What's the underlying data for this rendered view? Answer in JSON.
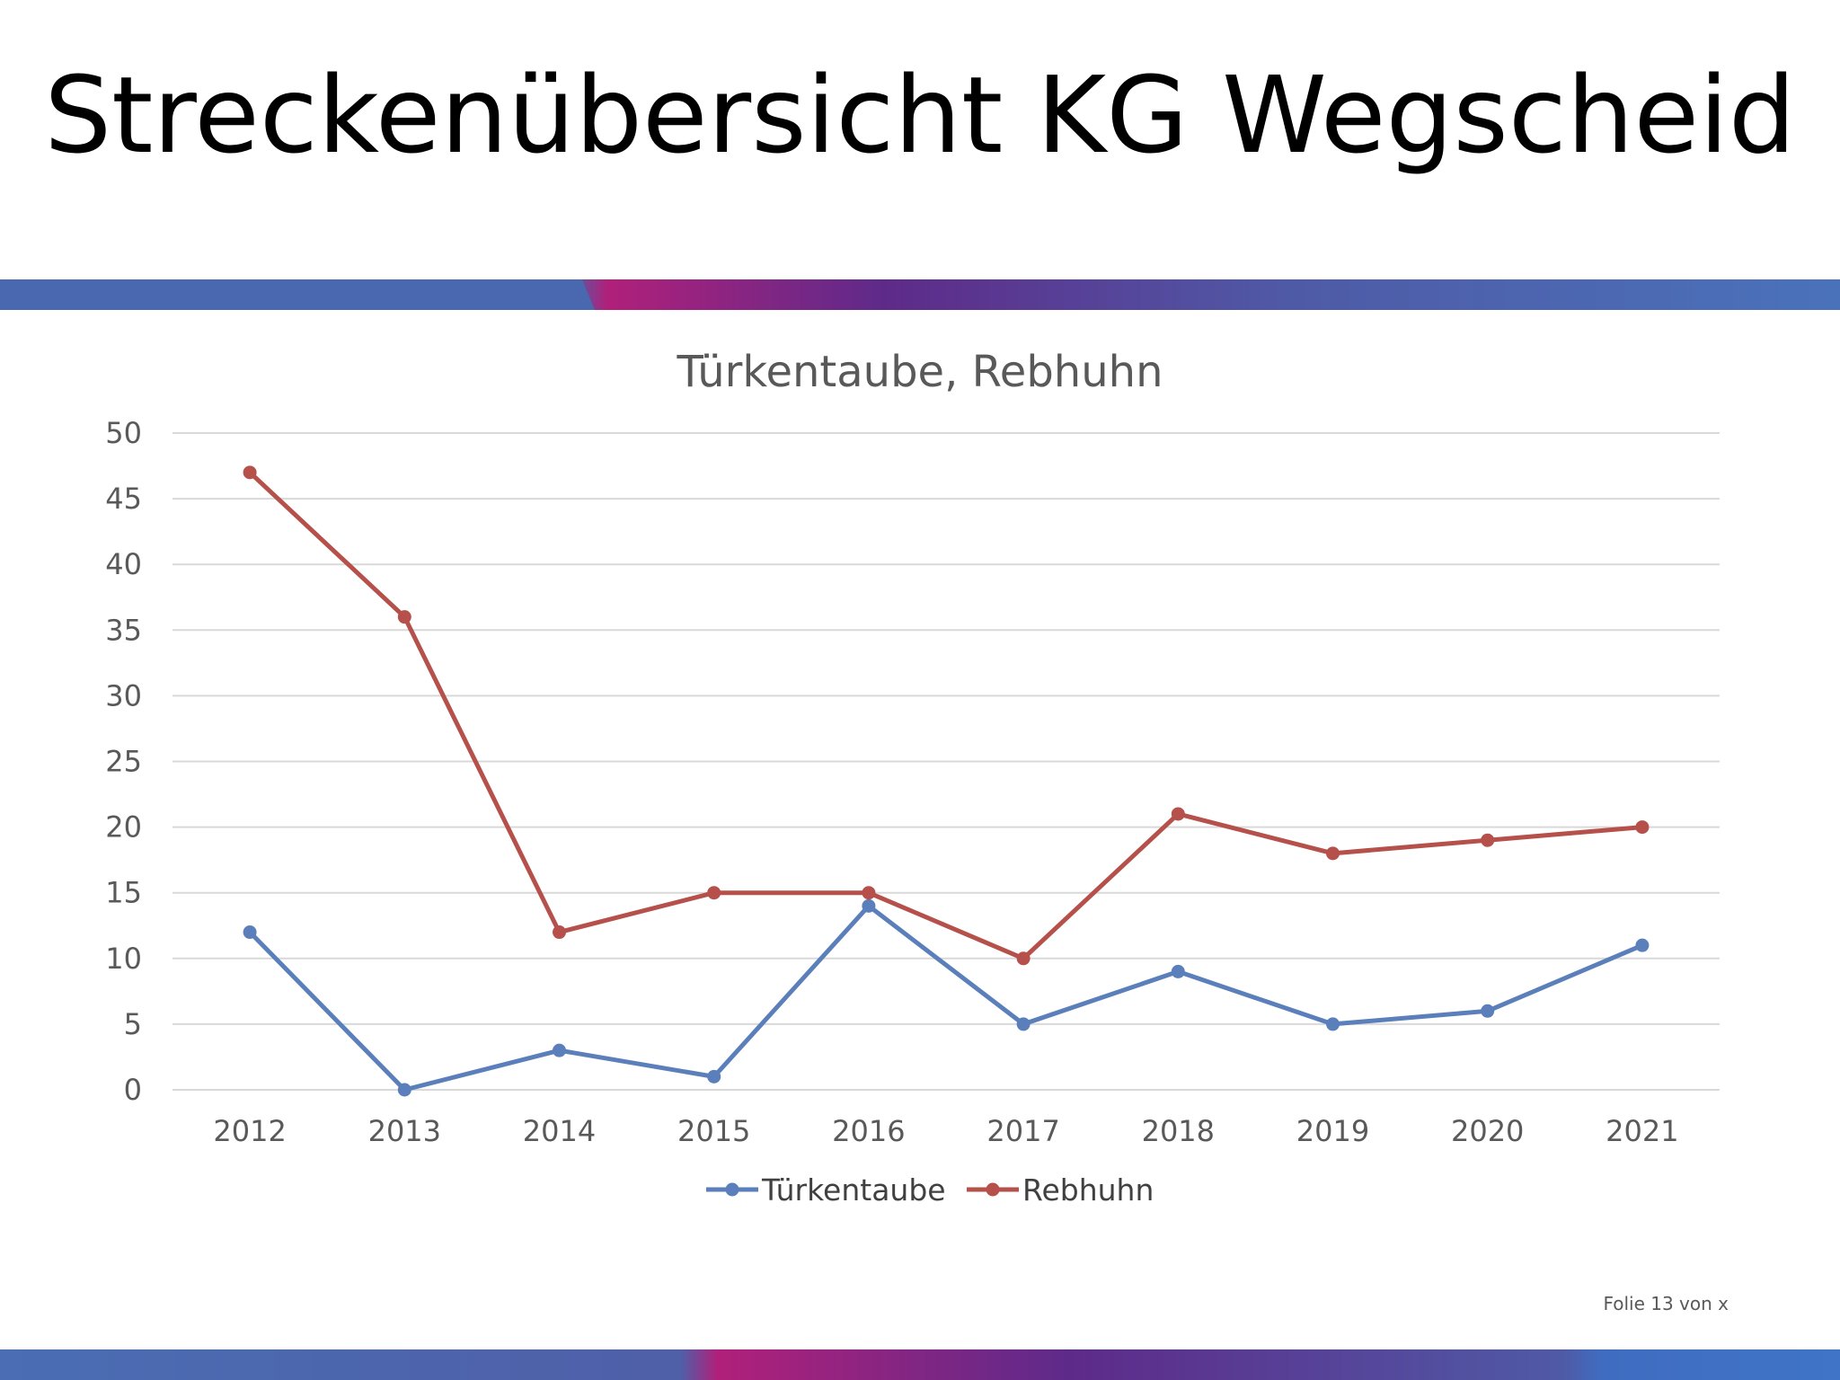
{
  "slide": {
    "title": "Streckenübersicht KG Wegscheid",
    "footer": "Folie 13 von x"
  },
  "colors": {
    "band_blue": "#4a6db3",
    "band_magenta": "#a8207a",
    "band_purple": "#5e2a8a",
    "gridline": "#d9d9d9",
    "text": "#595959"
  },
  "chart_data": {
    "type": "line",
    "title": "Türkentaube, Rebhuhn",
    "xlabel": "",
    "ylabel": "",
    "categories": [
      "2012",
      "2013",
      "2014",
      "2015",
      "2016",
      "2017",
      "2018",
      "2019",
      "2020",
      "2021"
    ],
    "ylim": [
      0,
      50
    ],
    "yticks": [
      0,
      5,
      10,
      15,
      20,
      25,
      30,
      35,
      40,
      45,
      50
    ],
    "grid": true,
    "legend_position": "bottom",
    "series": [
      {
        "name": "Türkentaube",
        "color": "#5b7fba",
        "values": [
          12,
          0,
          3,
          1,
          14,
          5,
          9,
          5,
          6,
          11
        ]
      },
      {
        "name": "Rebhuhn",
        "color": "#b5504b",
        "values": [
          47,
          36,
          12,
          15,
          15,
          10,
          21,
          18,
          19,
          20
        ]
      }
    ]
  }
}
